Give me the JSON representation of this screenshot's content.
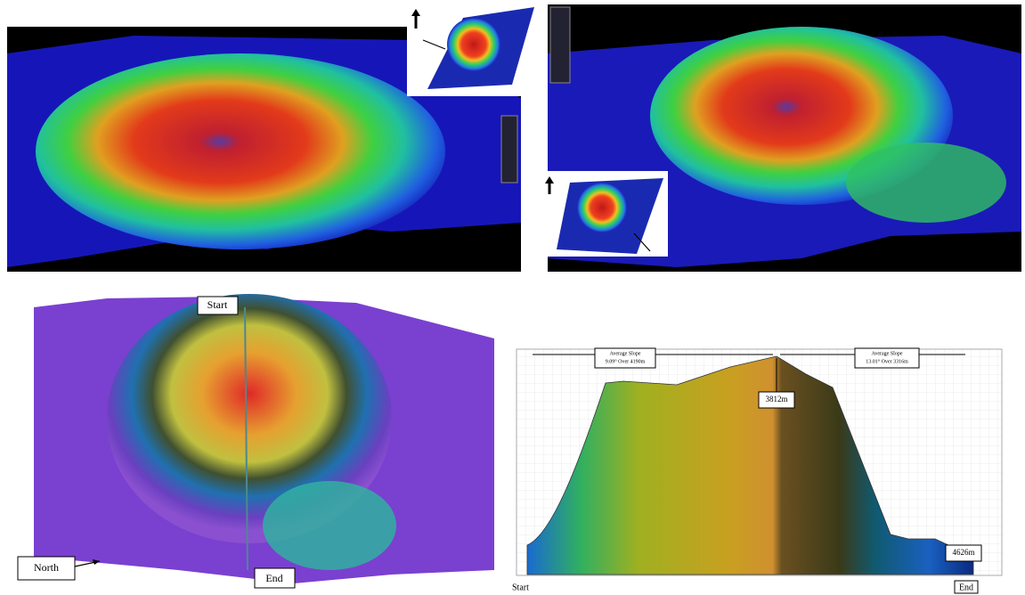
{
  "map_view": {
    "start_label": "Start",
    "end_label": "End",
    "north_label": "North"
  },
  "profile": {
    "left_slope": {
      "title": "Average Slope",
      "detail": "9.09° Over 4190m"
    },
    "right_slope": {
      "title": "Average Slope",
      "detail": "13.01° Over 3316m"
    },
    "peak_label": "3812m",
    "end_depth_label": "4626m",
    "start_label": "Start",
    "end_label": "End"
  }
}
